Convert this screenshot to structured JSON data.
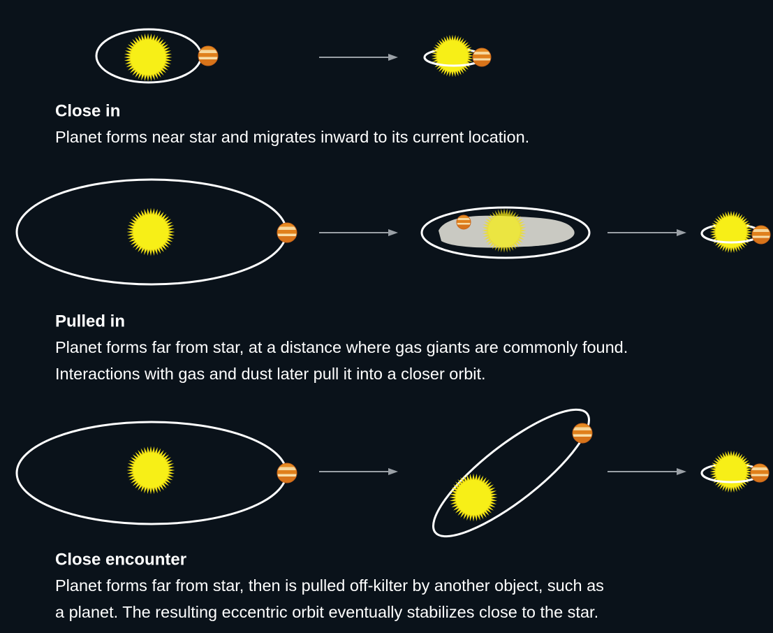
{
  "sections": [
    {
      "title": "Close in",
      "lines": [
        "Planet forms near star and migrates inward to its current location."
      ]
    },
    {
      "title": "Pulled in",
      "lines": [
        "Planet forms far from star, at a distance where gas giants are commonly found.",
        "Interactions with gas and dust later pull it into a closer orbit."
      ]
    },
    {
      "title": "Close encounter",
      "lines": [
        "Planet forms far from star, then is pulled off-kilter by another object, such as",
        "a planet. The resulting eccentric orbit eventually stabilizes close to the star."
      ]
    }
  ]
}
